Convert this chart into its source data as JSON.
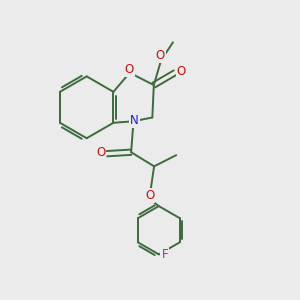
{
  "bg_color": "#ebebeb",
  "bond_color": "#3d6b3d",
  "bond_width": 1.4,
  "N_color": "#1a1aee",
  "O_color": "#cc1111",
  "F_color": "#cc11cc",
  "font_size": 8.5,
  "fig_size": [
    3.0,
    3.0
  ],
  "dpi": 100,
  "xlim": [
    0,
    10
  ],
  "ylim": [
    0,
    10
  ]
}
